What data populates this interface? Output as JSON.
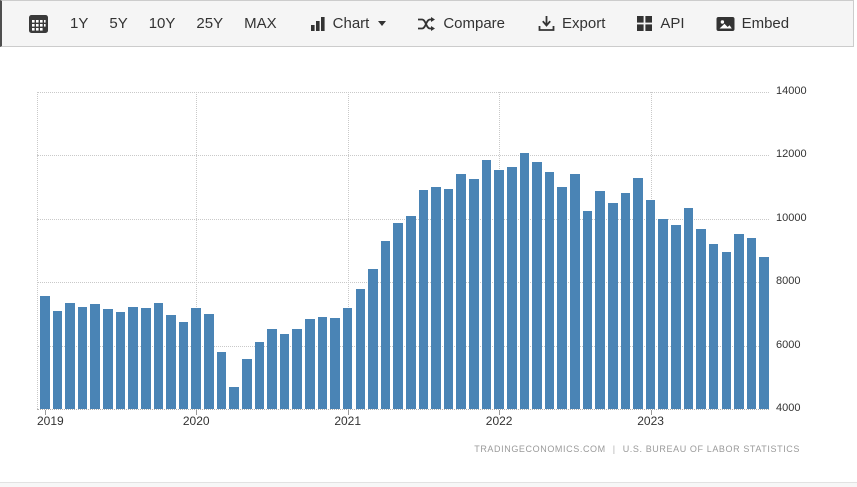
{
  "toolbar": {
    "range_buttons": [
      "1Y",
      "5Y",
      "10Y",
      "25Y",
      "MAX"
    ],
    "chart_label": "Chart",
    "compare_label": "Compare",
    "export_label": "Export",
    "api_label": "API",
    "embed_label": "Embed"
  },
  "attribution": {
    "left": "TRADINGECONOMICS.COM",
    "separator": "|",
    "right": "U.S. BUREAU OF LABOR STATISTICS"
  },
  "colors": {
    "bar": "#4a84b5",
    "toolbar_bg": "#f5f5f5",
    "grid": "#c9c9c9"
  },
  "chart_data": {
    "type": "bar",
    "title": "",
    "xlabel": "",
    "ylabel": "",
    "ylim": [
      4000,
      14000
    ],
    "y_ticks": [
      4000,
      6000,
      8000,
      10000,
      12000,
      14000
    ],
    "y_axis_side": "right",
    "grid": "dotted",
    "legend": "none",
    "x_tick_labels": [
      "2019",
      "2020",
      "2021",
      "2022",
      "2023"
    ],
    "x": [
      "2019-01",
      "2019-02",
      "2019-03",
      "2019-04",
      "2019-05",
      "2019-06",
      "2019-07",
      "2019-08",
      "2019-09",
      "2019-10",
      "2019-11",
      "2019-12",
      "2020-01",
      "2020-02",
      "2020-03",
      "2020-04",
      "2020-05",
      "2020-06",
      "2020-07",
      "2020-08",
      "2020-09",
      "2020-10",
      "2020-11",
      "2020-12",
      "2021-01",
      "2021-02",
      "2021-03",
      "2021-04",
      "2021-05",
      "2021-06",
      "2021-07",
      "2021-08",
      "2021-09",
      "2021-10",
      "2021-11",
      "2021-12",
      "2022-01",
      "2022-02",
      "2022-03",
      "2022-04",
      "2022-05",
      "2022-06",
      "2022-07",
      "2022-08",
      "2022-09",
      "2022-10",
      "2022-11",
      "2022-12",
      "2023-01",
      "2023-02",
      "2023-03",
      "2023-04",
      "2023-05",
      "2023-06",
      "2023-07",
      "2023-08",
      "2023-09",
      "2023-10"
    ],
    "values": [
      7560,
      7100,
      7340,
      7220,
      7310,
      7165,
      7070,
      7210,
      7195,
      7350,
      6955,
      6740,
      7185,
      7005,
      5810,
      4700,
      5580,
      6115,
      6515,
      6365,
      6515,
      6830,
      6910,
      6860,
      7190,
      7790,
      8410,
      9290,
      9880,
      10090,
      10910,
      11005,
      10930,
      11425,
      11255,
      11855,
      11540,
      11635,
      12065,
      11800,
      11490,
      11015,
      11425,
      10240,
      10885,
      10510,
      10805,
      11295,
      10585,
      10005,
      9795,
      10330,
      9670,
      9205,
      8955,
      9510,
      9385,
      8785
    ]
  }
}
